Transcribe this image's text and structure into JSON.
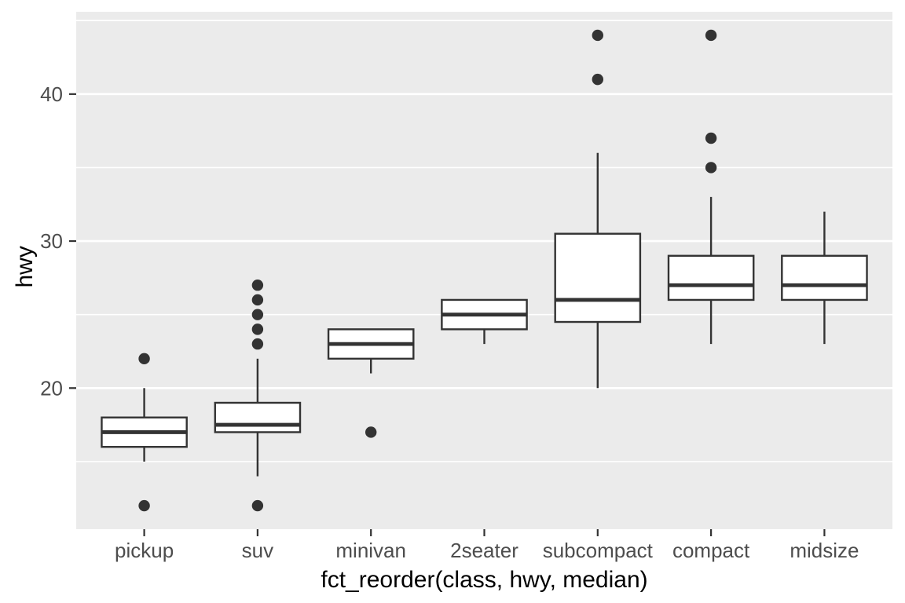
{
  "chart_data": {
    "type": "boxplot",
    "title": "",
    "xlabel": "fct_reorder(class, hwy, median)",
    "ylabel": "hwy",
    "categories": [
      "pickup",
      "suv",
      "minivan",
      "2seater",
      "subcompact",
      "compact",
      "midsize"
    ],
    "series": [
      {
        "category": "pickup",
        "whisker_low": 15,
        "q1": 16,
        "median": 17,
        "q3": 18,
        "whisker_high": 20,
        "outliers": [
          22,
          12
        ]
      },
      {
        "category": "suv",
        "whisker_low": 14,
        "q1": 17,
        "median": 17.5,
        "q3": 19,
        "whisker_high": 22,
        "outliers": [
          27,
          26,
          25,
          24,
          23,
          12
        ]
      },
      {
        "category": "minivan",
        "whisker_low": 21,
        "q1": 22,
        "median": 23,
        "q3": 24,
        "whisker_high": 24,
        "outliers": [
          17
        ]
      },
      {
        "category": "2seater",
        "whisker_low": 23,
        "q1": 24,
        "median": 25,
        "q3": 26,
        "whisker_high": 26,
        "outliers": []
      },
      {
        "category": "subcompact",
        "whisker_low": 20,
        "q1": 24.5,
        "median": 26,
        "q3": 30.5,
        "whisker_high": 36,
        "outliers": [
          44,
          41
        ]
      },
      {
        "category": "compact",
        "whisker_low": 23,
        "q1": 26,
        "median": 27,
        "q3": 29,
        "whisker_high": 33,
        "outliers": [
          44,
          37,
          35
        ]
      },
      {
        "category": "midsize",
        "whisker_low": 23,
        "q1": 26,
        "median": 27,
        "q3": 29,
        "whisker_high": 32,
        "outliers": []
      }
    ],
    "ylim": [
      10.4,
      45.6
    ],
    "y_major_ticks": [
      20,
      30,
      40
    ],
    "y_tick_labels": [
      "20",
      "30",
      "40"
    ],
    "y_minor_gridlines": [
      15,
      25,
      35,
      45
    ],
    "grid": "on",
    "legend": "none",
    "colors": {
      "panel_background": "#EBEBEB",
      "gridline": "#FFFFFF",
      "box_stroke": "#333333",
      "box_fill": "#FFFFFF",
      "outlier_fill": "#333333",
      "tick_mark": "#333333",
      "tick_label": "#4D4D4D",
      "axis_title": "#000000",
      "page_background": "#FFFFFF"
    }
  }
}
